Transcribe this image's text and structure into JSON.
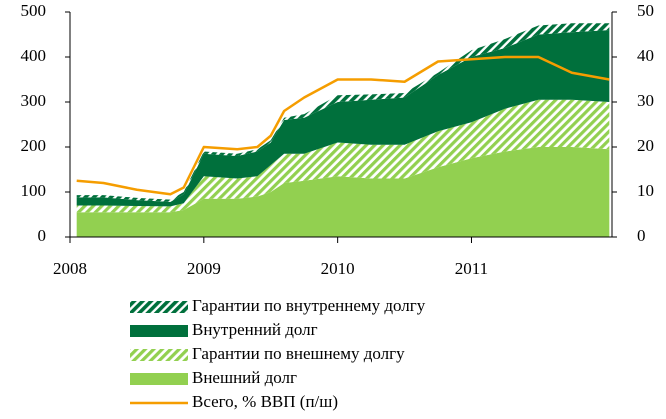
{
  "chart_data": {
    "type": "stacked-area-line",
    "x": [
      2008.05,
      2008.25,
      2008.5,
      2008.75,
      2008.85,
      2009.0,
      2009.25,
      2009.4,
      2009.5,
      2009.6,
      2009.75,
      2010.0,
      2010.25,
      2010.5,
      2010.75,
      2011.0,
      2011.25,
      2011.5,
      2011.75,
      2012.03
    ],
    "xlim": [
      2008,
      2012.05
    ],
    "xticks": [
      2008,
      2009,
      2010,
      2011
    ],
    "ylim": [
      0,
      500
    ],
    "yticks": [
      0,
      100,
      200,
      300,
      400,
      500
    ],
    "y2lim": [
      0,
      50
    ],
    "y2ticks": [
      0,
      10,
      20,
      30,
      40,
      50
    ],
    "series": [
      {
        "name": "Внешний долг",
        "color": "#92d050",
        "hatched": false,
        "values": [
          55,
          55,
          55,
          55,
          60,
          85,
          85,
          90,
          100,
          120,
          125,
          135,
          130,
          130,
          155,
          175,
          190,
          200,
          200,
          195
        ]
      },
      {
        "name": "Гарантии по внешнему долгу",
        "color": "#92d050",
        "hatched": true,
        "values": [
          15,
          15,
          14,
          13,
          15,
          50,
          45,
          45,
          60,
          65,
          60,
          75,
          75,
          75,
          80,
          80,
          95,
          105,
          105,
          105
        ]
      },
      {
        "name": "Внутренний долг",
        "color": "#00703c",
        "hatched": false,
        "values": [
          18,
          18,
          13,
          10,
          20,
          50,
          50,
          55,
          50,
          75,
          80,
          90,
          100,
          105,
          125,
          145,
          135,
          145,
          150,
          160
        ]
      },
      {
        "name": "Гарантии по внутреннему долгу",
        "color": "#00703c",
        "hatched": true,
        "values": [
          5,
          5,
          5,
          5,
          5,
          5,
          5,
          5,
          5,
          5,
          8,
          15,
          12,
          10,
          5,
          15,
          20,
          20,
          20,
          15
        ]
      },
      {
        "name": "Всего, % ВВП (п/ш)",
        "color": "#f59d00",
        "axis": "y2",
        "values": [
          12.5,
          12,
          10.5,
          9.5,
          11,
          20,
          19.5,
          20,
          22.5,
          28,
          31,
          35,
          35,
          34.5,
          39,
          39.5,
          40,
          40,
          36.5,
          35
        ]
      }
    ],
    "legend_order": [
      3,
      2,
      1,
      0,
      4
    ]
  }
}
